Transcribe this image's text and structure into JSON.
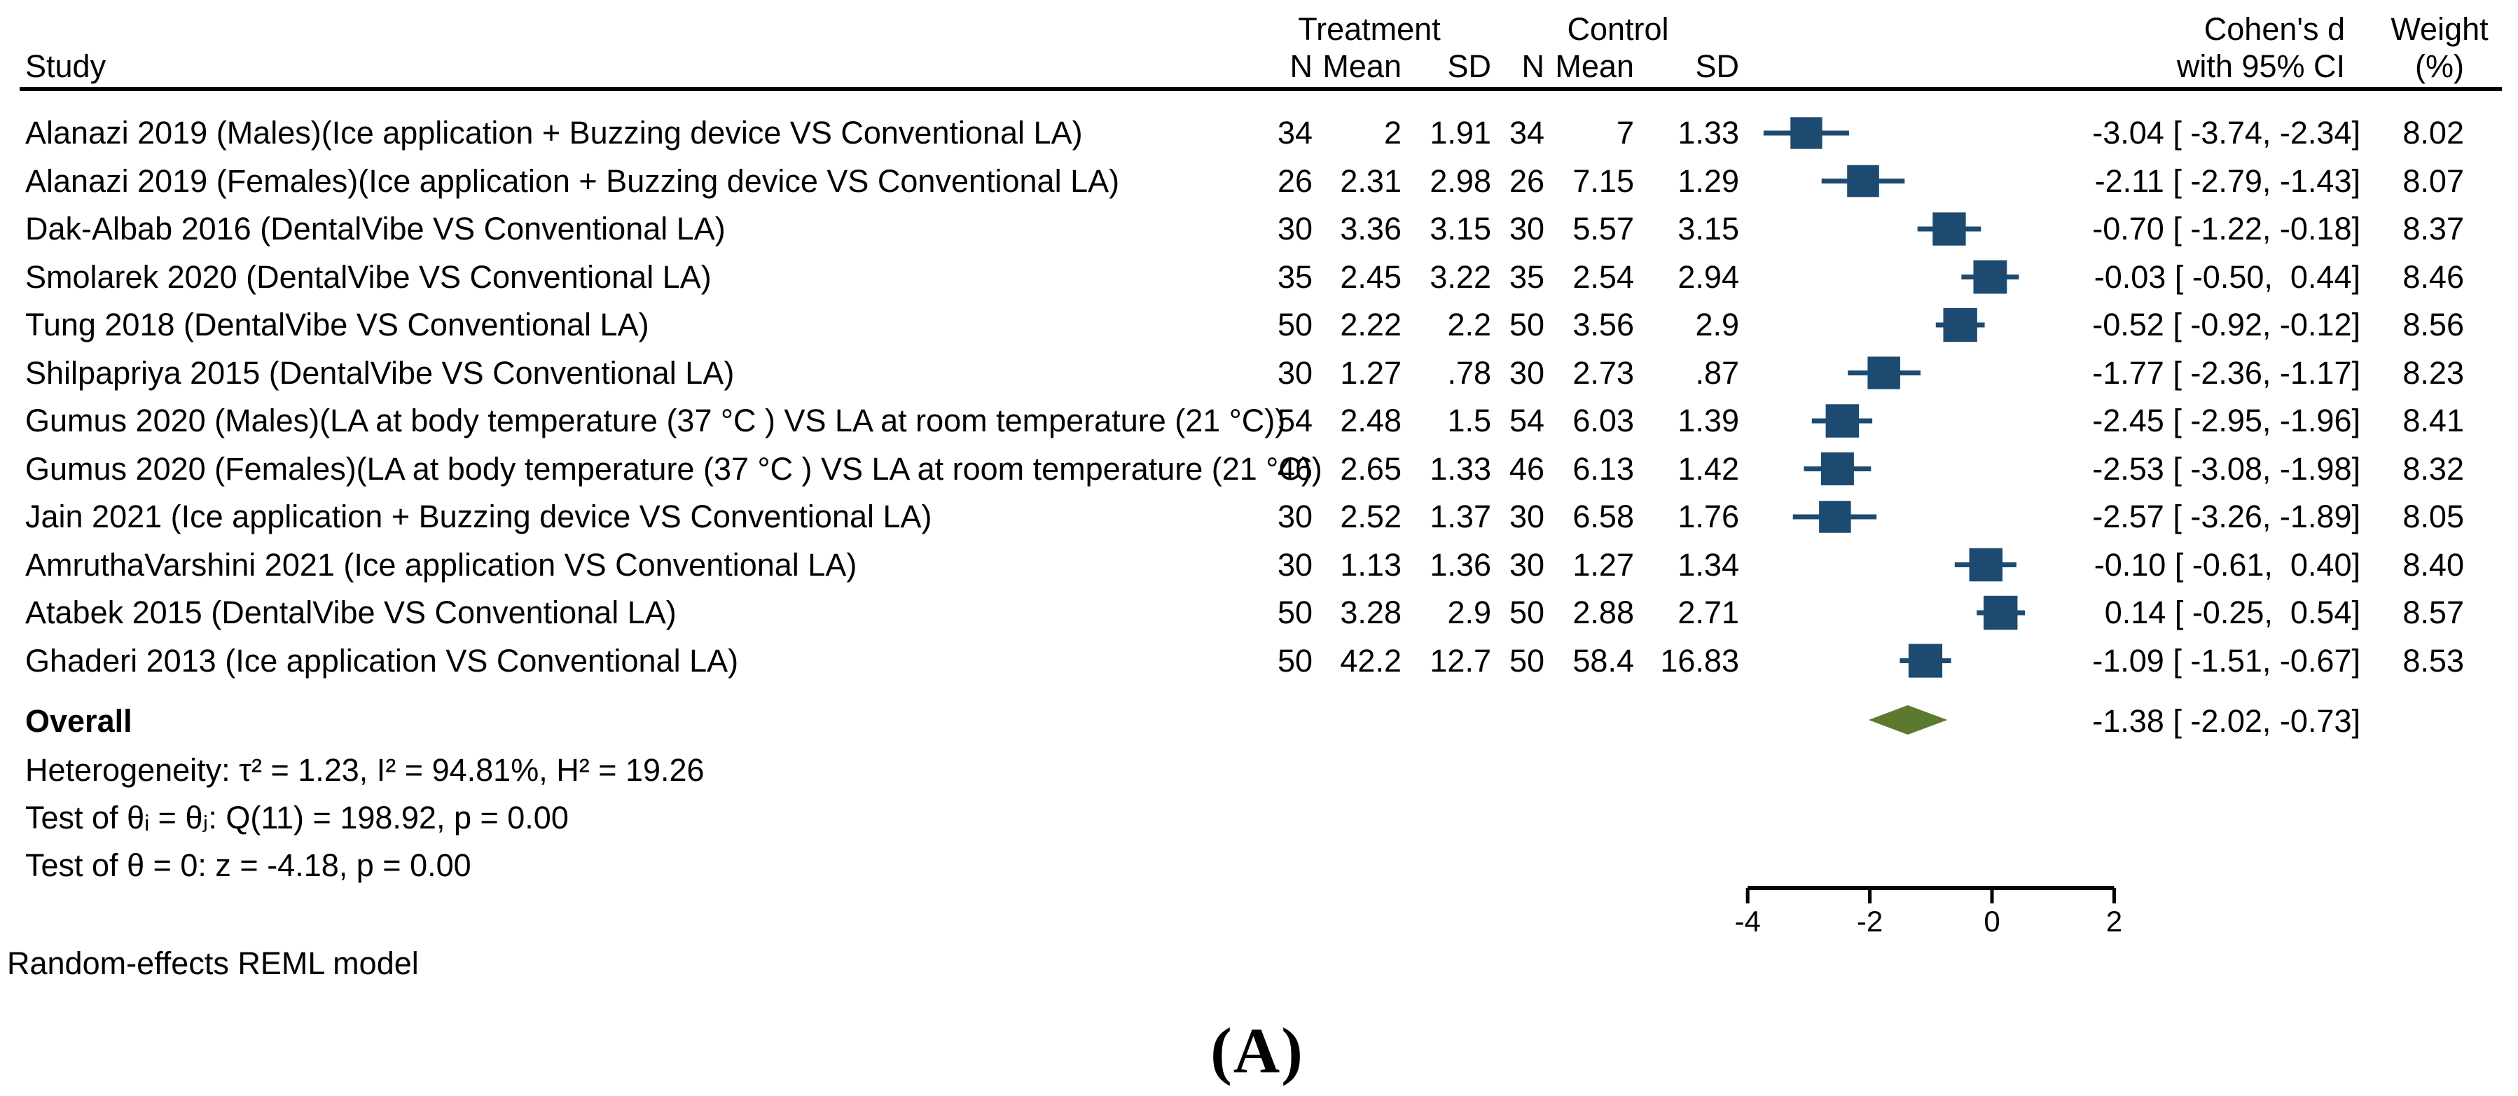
{
  "header": {
    "study": "Study",
    "group_treatment": "Treatment",
    "group_control": "Control",
    "n": "N",
    "mean": "Mean",
    "sd": "SD",
    "effect_line1": "Cohen's d",
    "effect_line2": "with 95% CI",
    "weight_line1": "Weight",
    "weight_line2": "(%)"
  },
  "stats": {
    "heterogeneity": "Heterogeneity: τ² = 1.23, I² = 94.81%, H² = 19.26",
    "test_thetas": "Test of θᵢ = θⱼ: Q(11) = 198.92, p = 0.00",
    "test_zero": "Test of θ = 0: z = -4.18, p = 0.00"
  },
  "footnote": "Random-effects REML model",
  "panel_label": "(A)",
  "colors": {
    "marker": "#1c4a70",
    "diamond": "#5b7a2e",
    "text": "#000000"
  },
  "chart_data": {
    "type": "forest",
    "effect_measure": "Cohen's d with 95% CI",
    "model": "Random-effects REML",
    "x_axis": {
      "ticks": [
        "-4",
        "-2",
        "0",
        "2"
      ],
      "tick_values": [
        -4,
        -2,
        0,
        2
      ],
      "range": [
        -4,
        2
      ]
    },
    "studies": [
      {
        "study": "Alanazi 2019 (Males)(Ice application + Buzzing device VS Conventional LA)",
        "t_n": "34",
        "t_mean": "2",
        "t_sd": "1.91",
        "c_n": "34",
        "c_mean": "7",
        "c_sd": "1.33",
        "d": -3.04,
        "lo": -3.74,
        "hi": -2.34,
        "ci_label": "-3.04 [ -3.74, -2.34]",
        "weight": 8.02,
        "weight_label": "8.02"
      },
      {
        "study": "Alanazi 2019 (Females)(Ice application + Buzzing device VS Conventional LA)",
        "t_n": "26",
        "t_mean": "2.31",
        "t_sd": "2.98",
        "c_n": "26",
        "c_mean": "7.15",
        "c_sd": "1.29",
        "d": -2.11,
        "lo": -2.79,
        "hi": -1.43,
        "ci_label": "-2.11 [ -2.79, -1.43]",
        "weight": 8.07,
        "weight_label": "8.07"
      },
      {
        "study": "Dak-Albab 2016 (DentalVibe VS Conventional LA)",
        "t_n": "30",
        "t_mean": "3.36",
        "t_sd": "3.15",
        "c_n": "30",
        "c_mean": "5.57",
        "c_sd": "3.15",
        "d": -0.7,
        "lo": -1.22,
        "hi": -0.18,
        "ci_label": "-0.70 [ -1.22, -0.18]",
        "weight": 8.37,
        "weight_label": "8.37"
      },
      {
        "study": "Smolarek 2020 (DentalVibe VS Conventional LA)",
        "t_n": "35",
        "t_mean": "2.45",
        "t_sd": "3.22",
        "c_n": "35",
        "c_mean": "2.54",
        "c_sd": "2.94",
        "d": -0.03,
        "lo": -0.5,
        "hi": 0.44,
        "ci_label": "-0.03 [ -0.50,  0.44]",
        "weight": 8.46,
        "weight_label": "8.46"
      },
      {
        "study": "Tung 2018 (DentalVibe VS Conventional LA)",
        "t_n": "50",
        "t_mean": "2.22",
        "t_sd": "2.2",
        "c_n": "50",
        "c_mean": "3.56",
        "c_sd": "2.9",
        "d": -0.52,
        "lo": -0.92,
        "hi": -0.12,
        "ci_label": "-0.52 [ -0.92, -0.12]",
        "weight": 8.56,
        "weight_label": "8.56"
      },
      {
        "study": "Shilpapriya 2015 (DentalVibe VS Conventional LA)",
        "t_n": "30",
        "t_mean": "1.27",
        "t_sd": ".78",
        "c_n": "30",
        "c_mean": "2.73",
        "c_sd": ".87",
        "d": -1.77,
        "lo": -2.36,
        "hi": -1.17,
        "ci_label": "-1.77 [ -2.36, -1.17]",
        "weight": 8.23,
        "weight_label": "8.23"
      },
      {
        "study": "Gumus 2020 (Males)(LA at body temperature (37 °C ) VS LA at room temperature (21 °C))",
        "t_n": "54",
        "t_mean": "2.48",
        "t_sd": "1.5",
        "c_n": "54",
        "c_mean": "6.03",
        "c_sd": "1.39",
        "d": -2.45,
        "lo": -2.95,
        "hi": -1.96,
        "ci_label": "-2.45 [ -2.95, -1.96]",
        "weight": 8.41,
        "weight_label": "8.41"
      },
      {
        "study": "Gumus 2020 (Females)(LA at body temperature (37 °C ) VS LA at room temperature (21 °C))",
        "t_n": "46",
        "t_mean": "2.65",
        "t_sd": "1.33",
        "c_n": "46",
        "c_mean": "6.13",
        "c_sd": "1.42",
        "d": -2.53,
        "lo": -3.08,
        "hi": -1.98,
        "ci_label": "-2.53 [ -3.08, -1.98]",
        "weight": 8.32,
        "weight_label": "8.32"
      },
      {
        "study": "Jain 2021 (Ice application + Buzzing device VS Conventional LA)",
        "t_n": "30",
        "t_mean": "2.52",
        "t_sd": "1.37",
        "c_n": "30",
        "c_mean": "6.58",
        "c_sd": "1.76",
        "d": -2.57,
        "lo": -3.26,
        "hi": -1.89,
        "ci_label": "-2.57 [ -3.26, -1.89]",
        "weight": 8.05,
        "weight_label": "8.05"
      },
      {
        "study": "AmruthaVarshini 2021 (Ice application VS Conventional LA)",
        "t_n": "30",
        "t_mean": "1.13",
        "t_sd": "1.36",
        "c_n": "30",
        "c_mean": "1.27",
        "c_sd": "1.34",
        "d": -0.1,
        "lo": -0.61,
        "hi": 0.4,
        "ci_label": "-0.10 [ -0.61,  0.40]",
        "weight": 8.4,
        "weight_label": "8.40"
      },
      {
        "study": "Atabek 2015 (DentalVibe VS Conventional LA)",
        "t_n": "50",
        "t_mean": "3.28",
        "t_sd": "2.9",
        "c_n": "50",
        "c_mean": "2.88",
        "c_sd": "2.71",
        "d": 0.14,
        "lo": -0.25,
        "hi": 0.54,
        "ci_label": "0.14 [ -0.25,  0.54]",
        "weight": 8.57,
        "weight_label": "8.57"
      },
      {
        "study": "Ghaderi 2013 (Ice application VS Conventional LA)",
        "t_n": "50",
        "t_mean": "42.2",
        "t_sd": "12.7",
        "c_n": "50",
        "c_mean": "58.4",
        "c_sd": "16.83",
        "d": -1.09,
        "lo": -1.51,
        "hi": -0.67,
        "ci_label": "-1.09 [ -1.51, -0.67]",
        "weight": 8.53,
        "weight_label": "8.53"
      }
    ],
    "overall": {
      "label": "Overall",
      "d": -1.38,
      "lo": -2.02,
      "hi": -0.73,
      "ci_label": "-1.38 [ -2.02, -0.73]"
    }
  }
}
